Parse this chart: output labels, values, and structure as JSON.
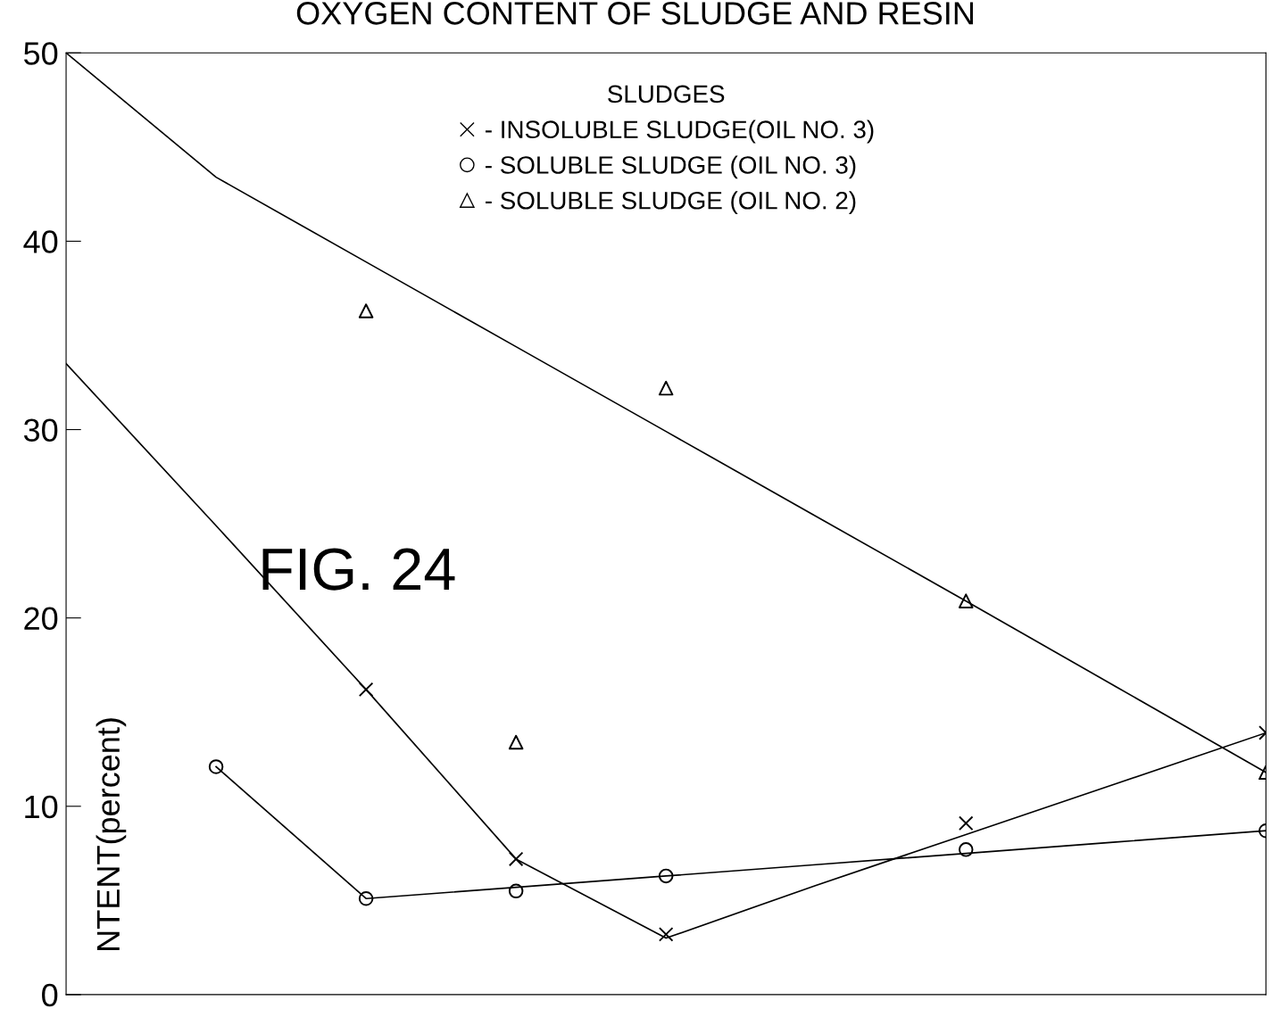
{
  "chart_data": {
    "type": "scatter",
    "title": "OXYGEN CONTENT OF SLUDGE AND RESIN",
    "ylabel": "NTENT(percent)",
    "legend_title": "SLUDGES",
    "legend": "top",
    "annotations": [
      "FIG. 24"
    ],
    "categories": [
      null,
      null,
      null,
      null,
      null,
      null,
      null,
      null,
      null
    ],
    "ylim": [
      0,
      50
    ],
    "yticks": [
      0,
      10,
      20,
      30,
      40,
      50
    ],
    "grid": false,
    "tick_labels": "y",
    "series": [
      {
        "name": "- INSOLUBLE SLUDGE(OIL NO. 3)",
        "color": "#000000",
        "marker": "cross",
        "values": [
          null,
          null,
          16.2,
          7.2,
          3.2,
          null,
          9.1,
          null,
          13.9
        ]
      },
      {
        "name": "- SOLUBLE SLUDGE (OIL NO. 3)",
        "color": "#000000",
        "marker": "circle",
        "values": [
          null,
          12.1,
          5.1,
          5.5,
          6.3,
          null,
          7.7,
          null,
          8.7
        ]
      },
      {
        "name": "- SOLUBLE SLUDGE (OIL NO. 2)",
        "color": "#000000",
        "marker": "triangle",
        "values": [
          null,
          null,
          36.3,
          13.4,
          32.2,
          null,
          20.9,
          null,
          11.8
        ]
      },
      {
        "type": "line",
        "color": "#000000",
        "line_style": "solid",
        "marker": "none",
        "values": [
          33.5,
          24.9,
          16.2,
          7.2,
          3.0,
          5.8,
          8.5,
          11.2,
          13.9
        ]
      },
      {
        "type": "line",
        "color": "#000000",
        "line_style": "solid",
        "marker": "none",
        "values": [
          null,
          12.1,
          5.1,
          5.7,
          6.3,
          6.9,
          7.5,
          8.1,
          8.7
        ]
      },
      {
        "type": "line",
        "color": "#000000",
        "line_style": "solid",
        "marker": "none",
        "values": [
          50,
          43.4,
          38.9,
          34.4,
          29.9,
          25.4,
          20.9,
          16.35,
          11.8
        ]
      }
    ]
  }
}
